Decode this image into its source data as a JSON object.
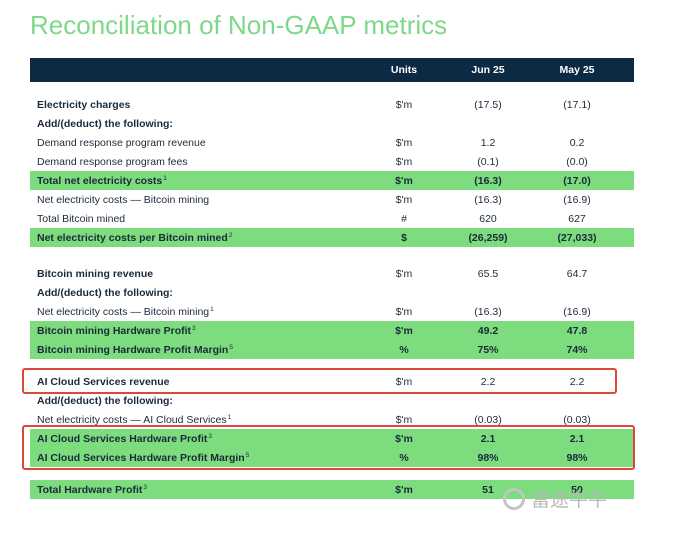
{
  "title": "Reconciliation of Non-GAAP metrics",
  "header": {
    "units": "Units",
    "jun": "Jun 25",
    "may": "May 25"
  },
  "sections": [
    {
      "rows": [
        {
          "label": "Electricity charges",
          "units": "$'m",
          "jun": "(17.5)",
          "may": "(17.1)",
          "bold": true
        },
        {
          "label": "Add/(deduct) the following:",
          "bold": true
        },
        {
          "label": "Demand response program revenue",
          "units": "$'m",
          "jun": "1.2",
          "may": "0.2"
        },
        {
          "label": "Demand response program fees",
          "units": "$'m",
          "jun": "(0.1)",
          "may": "(0.0)"
        },
        {
          "label": "Total net electricity costs",
          "sup": "1",
          "units": "$'m",
          "jun": "(16.3)",
          "may": "(17.0)",
          "highlight": true
        },
        {
          "label": "Net electricity costs — Bitcoin mining",
          "units": "$'m",
          "jun": "(16.3)",
          "may": "(16.9)"
        },
        {
          "label": "Total Bitcoin mined",
          "units": "#",
          "jun": "620",
          "may": "627"
        },
        {
          "label": "Net electricity costs per Bitcoin mined",
          "sup": "2",
          "units": "$",
          "jun": "(26,259)",
          "may": "(27,033)",
          "highlight": true
        }
      ]
    },
    {
      "rows": [
        {
          "label": "Bitcoin mining revenue",
          "units": "$'m",
          "jun": "65.5",
          "may": "64.7",
          "bold": true
        },
        {
          "label": "Add/(deduct) the following:",
          "bold": true
        },
        {
          "label": "Net electricity costs — Bitcoin mining",
          "sup": "1",
          "units": "$'m",
          "jun": "(16.3)",
          "may": "(16.9)"
        },
        {
          "label": "Bitcoin mining Hardware Profit",
          "sup": "3",
          "units": "$'m",
          "jun": "49.2",
          "may": "47.8",
          "highlight": true
        },
        {
          "label": "Bitcoin mining Hardware Profit Margin",
          "sup": "5",
          "units": "%",
          "jun": "75%",
          "may": "74%",
          "highlight": true
        }
      ]
    },
    {
      "rows": [
        {
          "label": "AI Cloud Services revenue",
          "units": "$'m",
          "jun": "2.2",
          "may": "2.2",
          "bold": true,
          "boxed": true
        },
        {
          "label": "Add/(deduct) the following:",
          "bold": true
        },
        {
          "label": "Net electricity costs — AI Cloud Services",
          "sup": "1",
          "units": "$'m",
          "jun": "(0.03)",
          "may": "(0.03)"
        },
        {
          "label": "AI Cloud Services Hardware Profit",
          "sup": "3",
          "units": "$'m",
          "jun": "2.1",
          "may": "2.1",
          "highlight": true,
          "boxed": true
        },
        {
          "label": "AI Cloud Services Hardware Profit Margin",
          "sup": "5",
          "units": "%",
          "jun": "98%",
          "may": "98%",
          "highlight": true,
          "boxed": true
        }
      ]
    },
    {
      "rows": [
        {
          "label": "Total Hardware Profit",
          "sup": "3",
          "units": "$'m",
          "jun": "51",
          "may": "50",
          "highlight": true
        }
      ]
    }
  ],
  "watermark": "富途牛牛"
}
